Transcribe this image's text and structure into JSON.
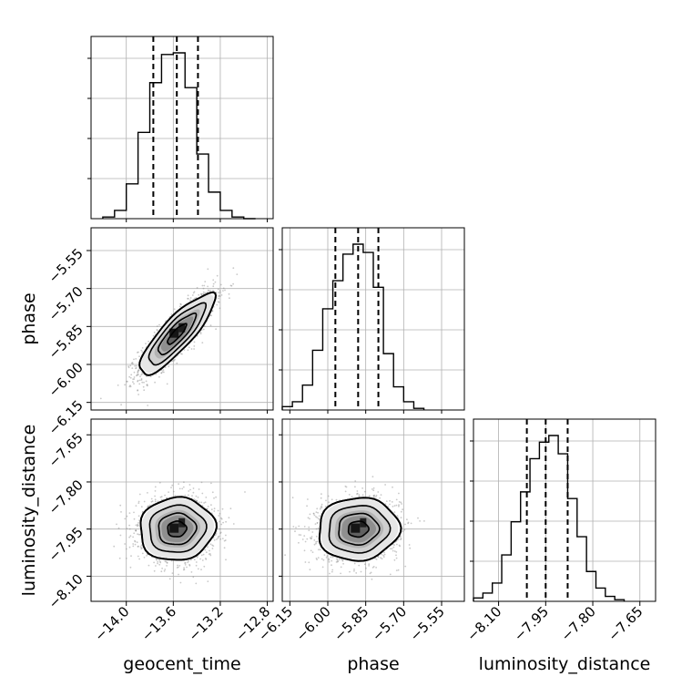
{
  "chart_data": {
    "type": "corner",
    "parameters": [
      "geocent_time",
      "phase",
      "luminosity_distance"
    ],
    "axis_labels": {
      "x": [
        "geocent_time",
        "phase",
        "luminosity_distance"
      ],
      "y": [
        "phase",
        "luminosity_distance"
      ]
    },
    "ranges": {
      "geocent_time": [
        -14.3,
        -12.75
      ],
      "phase": [
        -6.18,
        -5.46
      ],
      "luminosity_distance": [
        -8.18,
        -7.6
      ]
    },
    "ticks": {
      "geocent_time": {
        "values": [
          -14.0,
          -13.6,
          -13.2,
          -12.8
        ],
        "labels": [
          "−14.0",
          "−13.6",
          "−13.2",
          "−12.8"
        ]
      },
      "phase": {
        "values": [
          -6.15,
          -6.0,
          -5.85,
          -5.7,
          -5.55
        ],
        "labels": [
          "−6.15",
          "−6.00",
          "−5.85",
          "−5.70",
          "−5.55"
        ]
      },
      "luminosity_distance": {
        "values": [
          -8.1,
          -7.95,
          -7.8,
          -7.65
        ],
        "labels": [
          "−8.10",
          "−7.95",
          "−7.80",
          "−7.65"
        ]
      }
    },
    "histograms": [
      {
        "parameter": "geocent_time",
        "bin_edges": [
          -14.2,
          -14.1,
          -14.0,
          -13.9,
          -13.8,
          -13.7,
          -13.6,
          -13.5,
          -13.4,
          -13.3,
          -13.2,
          -13.1,
          -13.0,
          -12.9
        ],
        "density": [
          0.01,
          0.05,
          0.21,
          0.52,
          0.82,
          0.99,
          1.0,
          0.79,
          0.39,
          0.16,
          0.05,
          0.01,
          0.0
        ],
        "quantiles": [
          -13.77,
          -13.57,
          -13.39
        ]
      },
      {
        "parameter": "phase",
        "bin_edges": [
          -6.18,
          -6.14,
          -6.1,
          -6.06,
          -6.02,
          -5.98,
          -5.94,
          -5.9,
          -5.86,
          -5.82,
          -5.78,
          -5.74,
          -5.7,
          -5.66,
          -5.62
        ],
        "density": [
          0.02,
          0.05,
          0.15,
          0.36,
          0.61,
          0.78,
          0.94,
          1.0,
          0.95,
          0.74,
          0.34,
          0.14,
          0.05,
          0.01
        ],
        "quantiles": [
          -5.97,
          -5.88,
          -5.8
        ]
      },
      {
        "parameter": "luminosity_distance",
        "bin_edges": [
          -8.18,
          -8.15,
          -8.12,
          -8.09,
          -8.06,
          -8.03,
          -8.0,
          -7.97,
          -7.94,
          -7.91,
          -7.88,
          -7.85,
          -7.82,
          -7.79,
          -7.76,
          -7.73,
          -7.7
        ],
        "density": [
          0.02,
          0.05,
          0.11,
          0.28,
          0.48,
          0.66,
          0.86,
          0.96,
          1.0,
          0.89,
          0.62,
          0.39,
          0.18,
          0.08,
          0.03,
          0.01
        ],
        "quantiles": [
          -8.01,
          -7.95,
          -7.88
        ]
      }
    ],
    "scatter_panels": [
      {
        "x": "geocent_time",
        "y": "phase",
        "center": [
          -13.57,
          -5.88
        ],
        "sigma": [
          0.16,
          0.08
        ],
        "correlation": 0.85
      },
      {
        "x": "geocent_time",
        "y": "luminosity_distance",
        "center": [
          -13.57,
          -7.95
        ],
        "sigma": [
          0.16,
          0.05
        ],
        "correlation": 0.05
      },
      {
        "x": "phase",
        "y": "luminosity_distance",
        "center": [
          -5.88,
          -7.95
        ],
        "sigma": [
          0.08,
          0.05
        ],
        "correlation": 0.05
      }
    ],
    "contour_levels_sigma": [
      0.5,
      1.0,
      1.5,
      2.0
    ],
    "grid": true
  }
}
